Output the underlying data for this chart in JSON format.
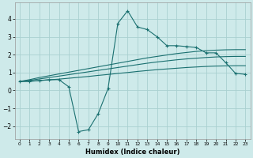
{
  "xlabel": "Humidex (Indice chaleur)",
  "bg_color": "#ceeaea",
  "grid_color": "#aad0d0",
  "line_color": "#1a7070",
  "xlim": [
    -0.5,
    23.5
  ],
  "ylim": [
    -2.7,
    4.9
  ],
  "xticks": [
    0,
    1,
    2,
    3,
    4,
    5,
    6,
    7,
    8,
    9,
    10,
    11,
    12,
    13,
    14,
    15,
    16,
    17,
    18,
    19,
    20,
    21,
    22,
    23
  ],
  "yticks": [
    -2,
    -1,
    0,
    1,
    2,
    3,
    4
  ],
  "x_main": [
    0,
    1,
    2,
    3,
    4,
    5,
    6,
    7,
    8,
    9,
    10,
    11,
    12,
    13,
    14,
    15,
    16,
    17,
    18,
    19,
    20,
    21,
    22,
    23
  ],
  "y_zigzag": [
    0.5,
    0.5,
    0.55,
    0.6,
    0.6,
    0.2,
    -2.3,
    -2.2,
    -1.3,
    0.1,
    3.75,
    4.45,
    3.55,
    3.4,
    3.0,
    2.5,
    2.5,
    2.45,
    2.4,
    2.1,
    2.1,
    1.55,
    0.95,
    0.9
  ],
  "y_line_top": [
    0.5,
    0.6,
    0.72,
    0.82,
    0.92,
    1.02,
    1.12,
    1.22,
    1.32,
    1.42,
    1.52,
    1.62,
    1.72,
    1.82,
    1.9,
    1.98,
    2.06,
    2.12,
    2.18,
    2.22,
    2.25,
    2.27,
    2.28,
    2.28
  ],
  "y_line_mid": [
    0.5,
    0.56,
    0.64,
    0.72,
    0.8,
    0.88,
    0.96,
    1.04,
    1.12,
    1.2,
    1.28,
    1.36,
    1.44,
    1.52,
    1.59,
    1.65,
    1.71,
    1.76,
    1.8,
    1.84,
    1.87,
    1.89,
    1.9,
    1.9
  ],
  "y_line_bot": [
    0.5,
    0.52,
    0.55,
    0.59,
    0.63,
    0.68,
    0.73,
    0.78,
    0.84,
    0.89,
    0.95,
    1.0,
    1.06,
    1.11,
    1.16,
    1.2,
    1.24,
    1.28,
    1.31,
    1.34,
    1.36,
    1.37,
    1.38,
    1.38
  ]
}
